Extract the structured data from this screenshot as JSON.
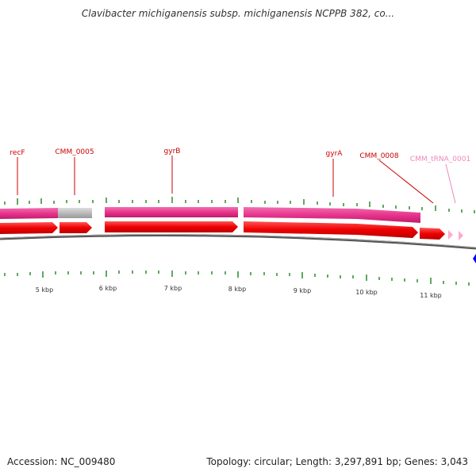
{
  "title": "Clavibacter michiganensis subsp. michiganensis NCPPB 382, co...",
  "footer": {
    "accession": "Accession: NC_009480",
    "summary": "Topology: circular; Length: 3,297,891 bp; Genes: 3,043"
  },
  "colors": {
    "cds": "#ff0000",
    "cog_pink": "#e8348c",
    "cog_gray": "#bbbbbb",
    "trna": "#ffaacc",
    "tick": "#2a8a2a",
    "backbone": "#777777",
    "gene_label": "#cc0000",
    "trna_label": "#ee88bb",
    "marker": "#0000ee"
  },
  "genes": [
    {
      "label": "recF"
    },
    {
      "label": "CMM_0005"
    },
    {
      "label": "gyrB"
    },
    {
      "label": "gyrA"
    },
    {
      "label": "CMM_0008"
    },
    {
      "label": "CMM_tRNA_0001"
    }
  ],
  "scale_labels": [
    "5 kbp",
    "6 kbp",
    "7 kbp",
    "8 kbp",
    "9 kbp",
    "10 kbp",
    "11 kbp"
  ]
}
